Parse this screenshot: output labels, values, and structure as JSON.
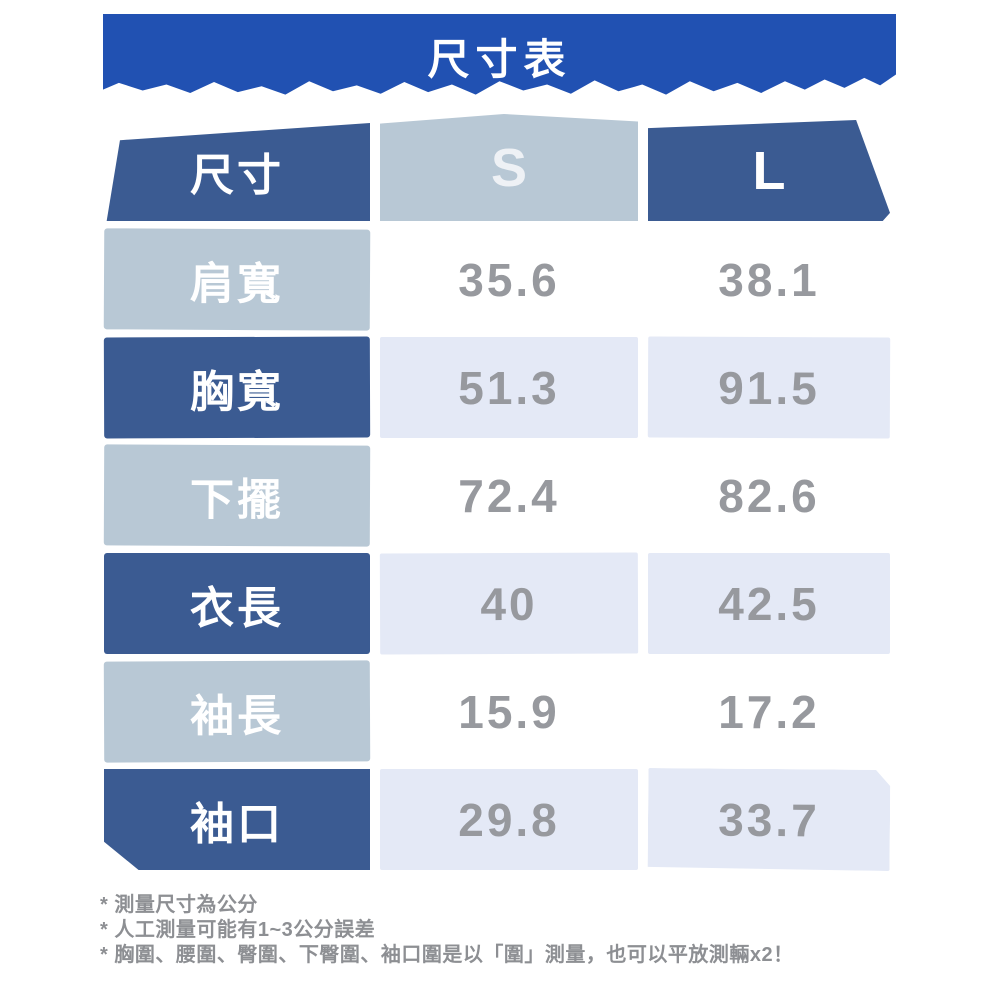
{
  "banner": {
    "title": "尺寸表"
  },
  "table": {
    "header": {
      "label": "尺寸",
      "size_s": "S",
      "size_l": "L"
    },
    "rows": [
      {
        "label": "肩寬",
        "s": "35.6",
        "l": "38.1"
      },
      {
        "label": "胸寬",
        "s": "51.3",
        "l": "91.5"
      },
      {
        "label": "下擺",
        "s": "72.4",
        "l": "82.6"
      },
      {
        "label": "衣長",
        "s": "40",
        "l": "42.5"
      },
      {
        "label": "袖長",
        "s": "15.9",
        "l": "17.2"
      },
      {
        "label": "袖口",
        "s": "29.8",
        "l": "33.7"
      }
    ]
  },
  "footnotes": [
    "* 測量尺寸為公分",
    "* 人工測量可能有1~3公分誤差",
    "* 胸圍、腰圍、臀圍、下臀圍、袖口圍是以「圍」測量，也可以平放測輛x2！"
  ],
  "colors": {
    "banner_blue": "#2151b2",
    "cell_dark_navy": "#3b5b92",
    "cell_light_steel": "#b8c8d5",
    "cell_lavender": "#e4e9f6",
    "value_text_gray": "#97999e",
    "footnote_gray": "#8d8f93"
  },
  "chart_data": {
    "type": "table",
    "title": "尺寸表",
    "columns": [
      "尺寸",
      "S",
      "L"
    ],
    "rows": [
      [
        "肩寬",
        35.6,
        38.1
      ],
      [
        "胸寬",
        51.3,
        91.5
      ],
      [
        "下擺",
        72.4,
        82.6
      ],
      [
        "衣長",
        40,
        42.5
      ],
      [
        "袖長",
        15.9,
        17.2
      ],
      [
        "袖口",
        29.8,
        33.7
      ]
    ],
    "units": "公分",
    "notes": [
      "測量尺寸為公分",
      "人工測量可能有1~3公分誤差",
      "胸圍、腰圍、臀圍、下臀圍、袖口圍是以「圍」測量，也可以平放測輛x2！"
    ]
  }
}
